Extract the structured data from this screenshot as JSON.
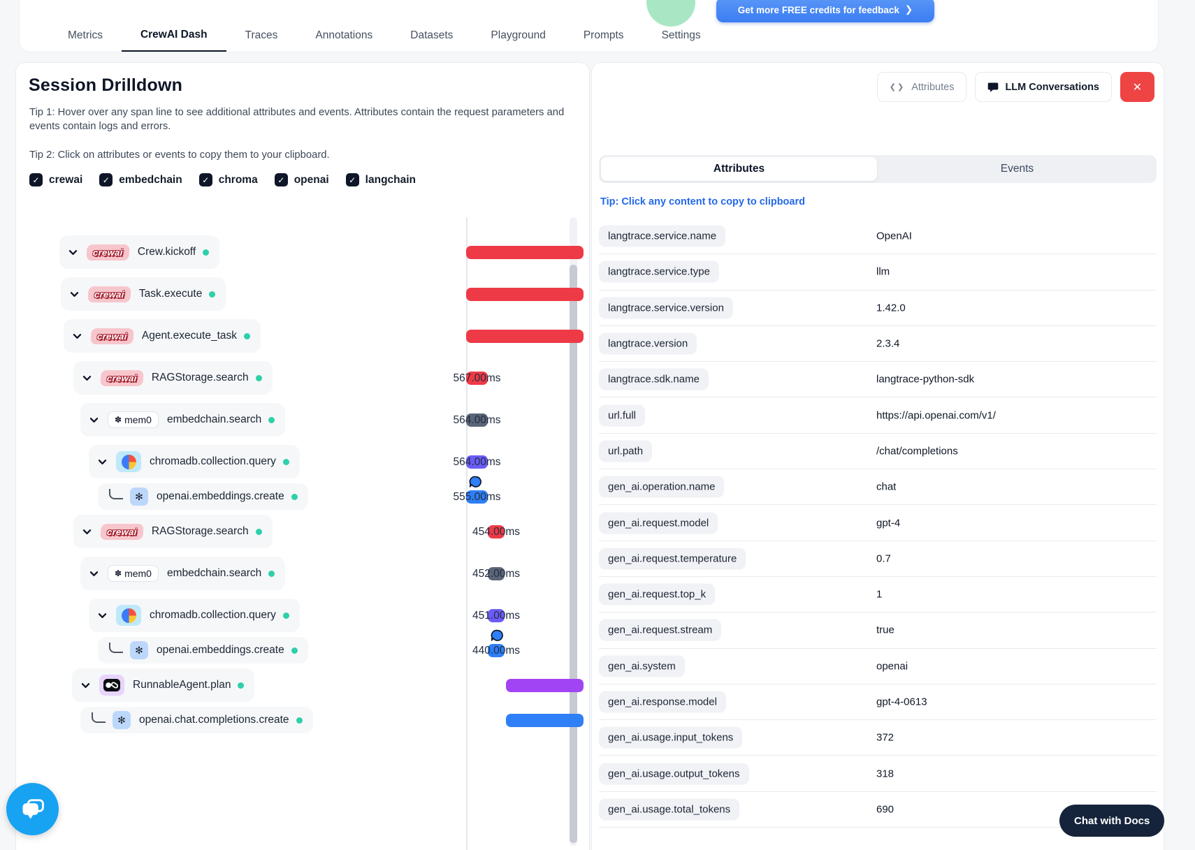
{
  "header": {
    "tabs": [
      "Metrics",
      "CrewAI Dash",
      "Traces",
      "Annotations",
      "Datasets",
      "Playground",
      "Prompts",
      "Settings"
    ],
    "active_tab": "CrewAI Dash",
    "credits_button": {
      "label": "Get more FREE credits for feedback",
      "arrow": "❯"
    }
  },
  "session": {
    "title": "Session Drilldown",
    "tip1": "Tip 1: Hover over any span line to see additional attributes and events. Attributes contain the request parameters and events contain logs and errors.",
    "tip2": "Tip 2: Click on attributes or events to copy them to your clipboard.",
    "filters": [
      {
        "label": "crewai",
        "checked": true
      },
      {
        "label": "embedchain",
        "checked": true
      },
      {
        "label": "chroma",
        "checked": true
      },
      {
        "label": "openai",
        "checked": true
      },
      {
        "label": "langchain",
        "checked": true
      }
    ],
    "check_glyph": "✓",
    "spans": [
      {
        "name": "Crew.kickoff",
        "vendor": "crewai",
        "icon": "crewai-logo",
        "timeline": {
          "type": "bar",
          "color": "red"
        }
      },
      {
        "name": "Task.execute",
        "vendor": "crewai",
        "icon": "crewai-logo",
        "timeline": {
          "type": "bar",
          "color": "red"
        }
      },
      {
        "name": "Agent.execute_task",
        "vendor": "crewai",
        "icon": "crewai-logo",
        "timeline": {
          "type": "bar",
          "color": "red"
        }
      },
      {
        "name": "RAGStorage.search",
        "vendor": "crewai",
        "icon": "crewai-logo",
        "timeline": {
          "type": "chip",
          "color": "red",
          "duration": "567.00ms"
        }
      },
      {
        "name": "embedchain.search",
        "vendor": "mem0",
        "icon": "mem0-logo",
        "timeline": {
          "type": "chip",
          "color": "slate",
          "duration": "564.00ms"
        }
      },
      {
        "name": "chromadb.collection.query",
        "vendor": "chroma",
        "icon": "chroma-logo",
        "timeline": {
          "type": "chip",
          "color": "indigo",
          "duration": "564.00ms"
        }
      },
      {
        "name": "openai.embeddings.create",
        "vendor": "openai",
        "icon": "openai-logo",
        "leaf": true,
        "timeline": {
          "type": "chip",
          "color": "blue",
          "duration": "555.00ms",
          "bubble": true
        }
      },
      {
        "name": "RAGStorage.search",
        "vendor": "crewai",
        "icon": "crewai-logo",
        "timeline": {
          "type": "chip",
          "color": "red",
          "duration": "454.00ms"
        }
      },
      {
        "name": "embedchain.search",
        "vendor": "mem0",
        "icon": "mem0-logo",
        "timeline": {
          "type": "chip",
          "color": "slate",
          "duration": "452.00ms"
        }
      },
      {
        "name": "chromadb.collection.query",
        "vendor": "chroma",
        "icon": "chroma-logo",
        "timeline": {
          "type": "chip",
          "color": "indigo",
          "duration": "451.00ms"
        }
      },
      {
        "name": "openai.embeddings.create",
        "vendor": "openai",
        "icon": "openai-logo",
        "leaf": true,
        "timeline": {
          "type": "chip",
          "color": "blue",
          "duration": "440.00ms",
          "bubble": true
        }
      },
      {
        "name": "RunnableAgent.plan",
        "vendor": "langchain",
        "icon": "langchain-logo",
        "timeline": {
          "type": "bar-right",
          "color": "purple"
        }
      },
      {
        "name": "openai.chat.completions.create",
        "vendor": "openai",
        "icon": "openai-logo",
        "leaf": true,
        "timeline": {
          "type": "bar-right",
          "color": "blue"
        }
      }
    ],
    "vendor_glyphs": {
      "crewai_label": "crewai",
      "mem0_label": "mem0",
      "mem0_glyph": "✽",
      "openai_glyph": "✻"
    }
  },
  "details": {
    "toolbar": {
      "attributes_button": "Attributes",
      "code_icon": "❮❯",
      "llm_button": "LLM Conversations",
      "close_icon": "✕"
    },
    "tabs": [
      {
        "label": "Attributes",
        "active": true
      },
      {
        "label": "Events",
        "active": false
      }
    ],
    "tip": "Tip: Click any content to copy to clipboard",
    "attributes": [
      {
        "key": "langtrace.service.name",
        "value": "OpenAI"
      },
      {
        "key": "langtrace.service.type",
        "value": "llm"
      },
      {
        "key": "langtrace.service.version",
        "value": "1.42.0"
      },
      {
        "key": "langtrace.version",
        "value": "2.3.4"
      },
      {
        "key": "langtrace.sdk.name",
        "value": "langtrace-python-sdk"
      },
      {
        "key": "url.full",
        "value": "https://api.openai.com/v1/"
      },
      {
        "key": "url.path",
        "value": "/chat/completions"
      },
      {
        "key": "gen_ai.operation.name",
        "value": "chat"
      },
      {
        "key": "gen_ai.request.model",
        "value": "gpt-4"
      },
      {
        "key": "gen_ai.request.temperature",
        "value": "0.7"
      },
      {
        "key": "gen_ai.request.top_k",
        "value": "1"
      },
      {
        "key": "gen_ai.request.stream",
        "value": "true"
      },
      {
        "key": "gen_ai.system",
        "value": "openai"
      },
      {
        "key": "gen_ai.response.model",
        "value": "gpt-4-0613"
      },
      {
        "key": "gen_ai.usage.input_tokens",
        "value": "372"
      },
      {
        "key": "gen_ai.usage.output_tokens",
        "value": "318"
      },
      {
        "key": "gen_ai.usage.total_tokens",
        "value": "690"
      }
    ]
  },
  "footer": {
    "chat_docs_button": "Chat with Docs"
  },
  "colors": {
    "red": "#ee3a46",
    "slate": "#5b6577",
    "indigo": "#6b5cf6",
    "blue": "#2f7ff7",
    "purple": "#a144f3",
    "teal_dot": "#2dd0a8",
    "accent_blue": "#3b7df2",
    "danger": "#ef4444",
    "link": "#2468eb",
    "chat_widget": "#18a3f2",
    "dark_navy": "#15243b"
  }
}
